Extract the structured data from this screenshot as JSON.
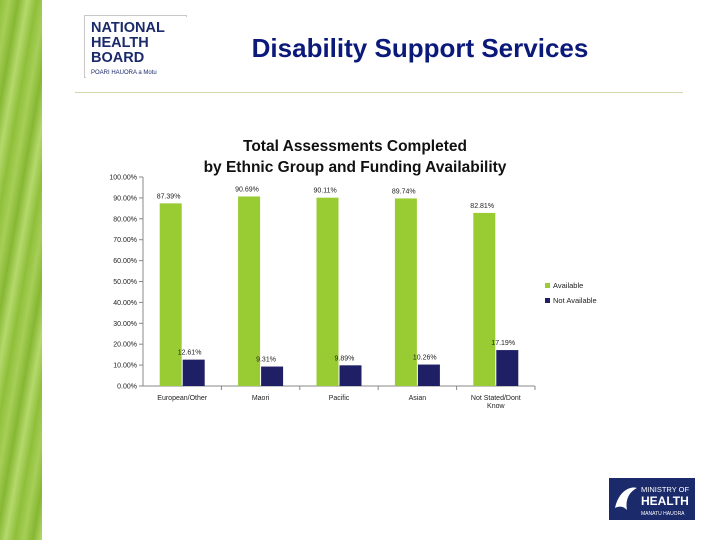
{
  "header": {
    "title": "Disability Support Services"
  },
  "logos": {
    "top_left_text": [
      "NATIONAL",
      "HEALTH",
      "BOARD"
    ],
    "top_left_tagline": "POARI HAUORA a Motu",
    "bottom_right_text": [
      "MINISTRY OF",
      "HEALTH"
    ],
    "bottom_right_tagline": "MANATU HAUORA"
  },
  "colors": {
    "available": "#99cc33",
    "not_available": "#1f1f66",
    "title": "#0b1a7a",
    "stripe": "#8fbf3a"
  },
  "chart_data": {
    "type": "bar",
    "title_lines": [
      "Total Assessments Completed",
      "by Ethnic Group and Funding Availability"
    ],
    "categories": [
      "European/Other",
      "Maori",
      "Pacific",
      "Asian",
      "Not Stated/Dont Know"
    ],
    "series": [
      {
        "name": "Available",
        "values": [
          87.39,
          90.69,
          90.11,
          89.74,
          82.81
        ],
        "labels": [
          "87.39%",
          "90.69%",
          "90.11%",
          "89.74%",
          "82.81%"
        ]
      },
      {
        "name": "Not Available",
        "values": [
          12.61,
          9.31,
          9.89,
          10.26,
          17.19
        ],
        "labels": [
          "12.61%",
          "9.31%",
          "9.89%",
          "10.26%",
          "17.19%"
        ]
      }
    ],
    "y_ticks": [
      "0.00%",
      "10.00%",
      "20.00%",
      "30.00%",
      "40.00%",
      "50.00%",
      "60.00%",
      "70.00%",
      "80.00%",
      "90.00%",
      "100.00%"
    ],
    "ylim": [
      0,
      100
    ],
    "grid": false,
    "legend_position": "right"
  }
}
